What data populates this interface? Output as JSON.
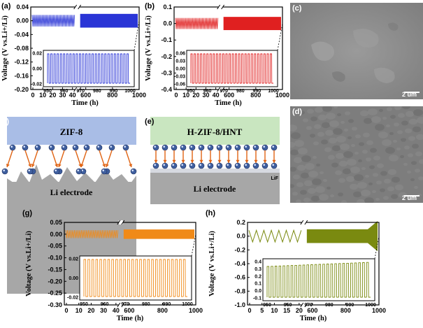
{
  "panels": {
    "a": {
      "label": "(a)"
    },
    "b": {
      "label": "(b)"
    },
    "c": {
      "label": "(c)",
      "scale_bar": "2 um"
    },
    "d": {
      "label": "(d)",
      "scale_bar": "2 um"
    },
    "e": {
      "label": "(e)",
      "film": "H-ZIF-8/HNT",
      "substrate": "Li electrode",
      "interlayer": "LiF"
    },
    "f": {
      "label": "(f)",
      "film": "ZIF-8",
      "substrate": "Li electrode"
    },
    "g": {
      "label": "(g)"
    },
    "h": {
      "label": "(h)"
    }
  },
  "colors": {
    "a": "#2a35d6",
    "b": "#e02020",
    "g": "#f08a18",
    "h": "#7a8a10"
  },
  "chart_data": [
    {
      "id": "a",
      "type": "line",
      "color": "#2a35d6",
      "xlabel": "Time (h)",
      "ylabel": "Voltage (V vs.Li+/Li)",
      "x_ticks": [
        "0",
        "10",
        "20",
        "30",
        "40",
        "600",
        "800",
        "1000"
      ],
      "y_ticks": [
        "0.04",
        "0.00",
        "-0.04",
        "-0.08",
        "-0.12",
        "-0.16",
        "-0.20"
      ],
      "ylim": [
        -0.2,
        0.04
      ],
      "amplitude": 0.02,
      "inset": {
        "x_ticks": [
          "950",
          "960",
          "970",
          "980",
          "990",
          "1000"
        ],
        "y_ticks": [
          "0.02",
          "0.00",
          "-0.02"
        ],
        "xlim": [
          950,
          1000
        ],
        "amplitude": 0.02
      }
    },
    {
      "id": "b",
      "type": "line",
      "color": "#e02020",
      "xlabel": "Time (h)",
      "ylabel": "Voltage (V vs.Li+/Li)",
      "x_ticks": [
        "0",
        "10",
        "20",
        "30",
        "40",
        "600",
        "800",
        "1000"
      ],
      "y_ticks": [
        "0.1",
        "0.0",
        "-0.1",
        "-0.2",
        "-0.3",
        "-0.4"
      ],
      "ylim": [
        -0.4,
        0.1
      ],
      "amplitude": 0.04,
      "inset": {
        "x_ticks": [
          "950",
          "960",
          "970",
          "980",
          "990",
          "1000"
        ],
        "y_ticks": [
          "0.06",
          "0.03",
          "0.00",
          "-0.03",
          "-0.06"
        ],
        "xlim": [
          950,
          1000
        ],
        "amplitude": 0.05
      }
    },
    {
      "id": "g",
      "type": "line",
      "color": "#f08a18",
      "xlabel": "Time (h)",
      "ylabel": "Voltage (V vs.Li+/Li)",
      "x_ticks": [
        "0",
        "10",
        "20",
        "30",
        "40",
        "600",
        "800",
        "1000"
      ],
      "y_ticks": [
        "0.05",
        "0.00",
        "-0.05",
        "-0.10",
        "-0.15",
        "-0.20",
        "-0.25",
        "-0.30"
      ],
      "ylim": [
        -0.3,
        0.05
      ],
      "amplitude": 0.02,
      "inset": {
        "x_ticks": [
          "950",
          "960",
          "970",
          "980",
          "990",
          "1000"
        ],
        "y_ticks": [
          "0.02",
          "0.00",
          "-0.02"
        ],
        "xlim": [
          950,
          1000
        ],
        "amplitude": 0.02
      }
    },
    {
      "id": "h",
      "type": "line",
      "color": "#7a8a10",
      "xlabel": "Time (h)",
      "ylabel": "Voltage (V vs.Li+/Li)",
      "x_ticks": [
        "0",
        "5",
        "10",
        "15",
        "20",
        "600",
        "800",
        "1000"
      ],
      "y_ticks": [
        "0.2",
        "0.0",
        "-0.2",
        "-0.4",
        "-0.6",
        "-0.8",
        "-1.0"
      ],
      "ylim": [
        -1.0,
        0.2
      ],
      "amplitude": 0.1,
      "inset": {
        "x_ticks": [
          "950",
          "960",
          "970",
          "980",
          "990",
          "1000"
        ],
        "y_ticks": [
          "0.4",
          "0.3",
          "0.2",
          "0.1",
          "0.0",
          "-0.1"
        ],
        "xlim": [
          950,
          1000
        ],
        "amplitude": 0.15
      }
    }
  ]
}
